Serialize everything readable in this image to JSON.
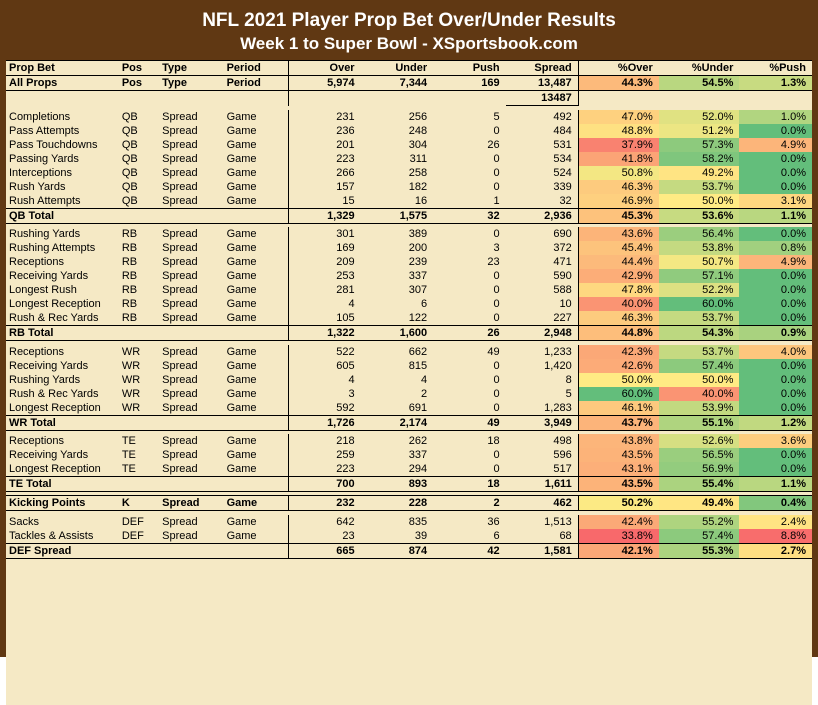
{
  "title": {
    "line1": "NFL 2021 Player Prop Bet Over/Under Results",
    "line2": "Week 1 to Super Bowl - XSportsbook.com"
  },
  "columns": [
    "Prop Bet",
    "Pos",
    "Type",
    "Period",
    "Over",
    "Under",
    "Push",
    "Spread",
    "%Over",
    "%Under",
    "%Push"
  ],
  "percent_color_stops": {
    "pct_cols": {
      "green": "#63be7b",
      "yellow": "#ffeb84",
      "red": "#f8696b",
      "green_at": 60,
      "yellow_at": 50,
      "red_at": 35
    },
    "push_cols": {
      "green": "#63be7b",
      "yellow": "#ffeb84",
      "red": "#f8696b",
      "green_at": 0,
      "yellow_at": 2,
      "red_at": 9
    }
  },
  "meta_row": {
    "propbet": "All Props",
    "pos": "Pos",
    "type": "Type",
    "period": "Period",
    "over": "5,974",
    "under": "7,344",
    "push": "169",
    "spread": "13,487",
    "pover": "44.3%",
    "punder": "54.5%",
    "ppush": "1.3%",
    "pover_v": 44.3,
    "punder_v": 54.5,
    "ppush_v": 1.3
  },
  "meta_extra": {
    "spread": "13487"
  },
  "groups": [
    {
      "rows": [
        {
          "propbet": "Completions",
          "pos": "QB",
          "type": "Spread",
          "period": "Game",
          "over": "231",
          "under": "256",
          "push": "5",
          "spread": "492",
          "pover": "47.0%",
          "punder": "52.0%",
          "ppush": "1.0%",
          "pover_v": 47.0,
          "punder_v": 52.0,
          "ppush_v": 1.0
        },
        {
          "propbet": "Pass Attempts",
          "pos": "QB",
          "type": "Spread",
          "period": "Game",
          "over": "236",
          "under": "248",
          "push": "0",
          "spread": "484",
          "pover": "48.8%",
          "punder": "51.2%",
          "ppush": "0.0%",
          "pover_v": 48.8,
          "punder_v": 51.2,
          "ppush_v": 0.0
        },
        {
          "propbet": "Pass Touchdowns",
          "pos": "QB",
          "type": "Spread",
          "period": "Game",
          "over": "201",
          "under": "304",
          "push": "26",
          "spread": "531",
          "pover": "37.9%",
          "punder": "57.3%",
          "ppush": "4.9%",
          "pover_v": 37.9,
          "punder_v": 57.3,
          "ppush_v": 4.9
        },
        {
          "propbet": "Passing Yards",
          "pos": "QB",
          "type": "Spread",
          "period": "Game",
          "over": "223",
          "under": "311",
          "push": "0",
          "spread": "534",
          "pover": "41.8%",
          "punder": "58.2%",
          "ppush": "0.0%",
          "pover_v": 41.8,
          "punder_v": 58.2,
          "ppush_v": 0.0
        },
        {
          "propbet": "Interceptions",
          "pos": "QB",
          "type": "Spread",
          "period": "Game",
          "over": "266",
          "under": "258",
          "push": "0",
          "spread": "524",
          "pover": "50.8%",
          "punder": "49.2%",
          "ppush": "0.0%",
          "pover_v": 50.8,
          "punder_v": 49.2,
          "ppush_v": 0.0
        },
        {
          "propbet": "Rush Yards",
          "pos": "QB",
          "type": "Spread",
          "period": "Game",
          "over": "157",
          "under": "182",
          "push": "0",
          "spread": "339",
          "pover": "46.3%",
          "punder": "53.7%",
          "ppush": "0.0%",
          "pover_v": 46.3,
          "punder_v": 53.7,
          "ppush_v": 0.0
        },
        {
          "propbet": "Rush Attempts",
          "pos": "QB",
          "type": "Spread",
          "period": "Game",
          "over": "15",
          "under": "16",
          "push": "1",
          "spread": "32",
          "pover": "46.9%",
          "punder": "50.0%",
          "ppush": "3.1%",
          "pover_v": 46.9,
          "punder_v": 50.0,
          "ppush_v": 3.1
        }
      ],
      "total": {
        "propbet": "QB Total",
        "pos": "",
        "type": "",
        "period": "",
        "over": "1,329",
        "under": "1,575",
        "push": "32",
        "spread": "2,936",
        "pover": "45.3%",
        "punder": "53.6%",
        "ppush": "1.1%",
        "pover_v": 45.3,
        "punder_v": 53.6,
        "ppush_v": 1.1
      }
    },
    {
      "rows": [
        {
          "propbet": "Rushing Yards",
          "pos": "RB",
          "type": "Spread",
          "period": "Game",
          "over": "301",
          "under": "389",
          "push": "0",
          "spread": "690",
          "pover": "43.6%",
          "punder": "56.4%",
          "ppush": "0.0%",
          "pover_v": 43.6,
          "punder_v": 56.4,
          "ppush_v": 0.0
        },
        {
          "propbet": "Rushing Attempts",
          "pos": "RB",
          "type": "Spread",
          "period": "Game",
          "over": "169",
          "under": "200",
          "push": "3",
          "spread": "372",
          "pover": "45.4%",
          "punder": "53.8%",
          "ppush": "0.8%",
          "pover_v": 45.4,
          "punder_v": 53.8,
          "ppush_v": 0.8
        },
        {
          "propbet": "Receptions",
          "pos": "RB",
          "type": "Spread",
          "period": "Game",
          "over": "209",
          "under": "239",
          "push": "23",
          "spread": "471",
          "pover": "44.4%",
          "punder": "50.7%",
          "ppush": "4.9%",
          "pover_v": 44.4,
          "punder_v": 50.7,
          "ppush_v": 4.9
        },
        {
          "propbet": "Receiving Yards",
          "pos": "RB",
          "type": "Spread",
          "period": "Game",
          "over": "253",
          "under": "337",
          "push": "0",
          "spread": "590",
          "pover": "42.9%",
          "punder": "57.1%",
          "ppush": "0.0%",
          "pover_v": 42.9,
          "punder_v": 57.1,
          "ppush_v": 0.0
        },
        {
          "propbet": "Longest Rush",
          "pos": "RB",
          "type": "Spread",
          "period": "Game",
          "over": "281",
          "under": "307",
          "push": "0",
          "spread": "588",
          "pover": "47.8%",
          "punder": "52.2%",
          "ppush": "0.0%",
          "pover_v": 47.8,
          "punder_v": 52.2,
          "ppush_v": 0.0
        },
        {
          "propbet": "Longest Reception",
          "pos": "RB",
          "type": "Spread",
          "period": "Game",
          "over": "4",
          "under": "6",
          "push": "0",
          "spread": "10",
          "pover": "40.0%",
          "punder": "60.0%",
          "ppush": "0.0%",
          "pover_v": 40.0,
          "punder_v": 60.0,
          "ppush_v": 0.0
        },
        {
          "propbet": "Rush & Rec Yards",
          "pos": "RB",
          "type": "Spread",
          "period": "Game",
          "over": "105",
          "under": "122",
          "push": "0",
          "spread": "227",
          "pover": "46.3%",
          "punder": "53.7%",
          "ppush": "0.0%",
          "pover_v": 46.3,
          "punder_v": 53.7,
          "ppush_v": 0.0
        }
      ],
      "total": {
        "propbet": "RB Total",
        "pos": "",
        "type": "",
        "period": "",
        "over": "1,322",
        "under": "1,600",
        "push": "26",
        "spread": "2,948",
        "pover": "44.8%",
        "punder": "54.3%",
        "ppush": "0.9%",
        "pover_v": 44.8,
        "punder_v": 54.3,
        "ppush_v": 0.9
      }
    },
    {
      "rows": [
        {
          "propbet": "Receptions",
          "pos": "WR",
          "type": "Spread",
          "period": "Game",
          "over": "522",
          "under": "662",
          "push": "49",
          "spread": "1,233",
          "pover": "42.3%",
          "punder": "53.7%",
          "ppush": "4.0%",
          "pover_v": 42.3,
          "punder_v": 53.7,
          "ppush_v": 4.0
        },
        {
          "propbet": "Receiving Yards",
          "pos": "WR",
          "type": "Spread",
          "period": "Game",
          "over": "605",
          "under": "815",
          "push": "0",
          "spread": "1,420",
          "pover": "42.6%",
          "punder": "57.4%",
          "ppush": "0.0%",
          "pover_v": 42.6,
          "punder_v": 57.4,
          "ppush_v": 0.0
        },
        {
          "propbet": "Rushing Yards",
          "pos": "WR",
          "type": "Spread",
          "period": "Game",
          "over": "4",
          "under": "4",
          "push": "0",
          "spread": "8",
          "pover": "50.0%",
          "punder": "50.0%",
          "ppush": "0.0%",
          "pover_v": 50.0,
          "punder_v": 50.0,
          "ppush_v": 0.0
        },
        {
          "propbet": "Rush & Rec Yards",
          "pos": "WR",
          "type": "Spread",
          "period": "Game",
          "over": "3",
          "under": "2",
          "push": "0",
          "spread": "5",
          "pover": "60.0%",
          "punder": "40.0%",
          "ppush": "0.0%",
          "pover_v": 60.0,
          "punder_v": 40.0,
          "ppush_v": 0.0
        },
        {
          "propbet": "Longest Reception",
          "pos": "WR",
          "type": "Spread",
          "period": "Game",
          "over": "592",
          "under": "691",
          "push": "0",
          "spread": "1,283",
          "pover": "46.1%",
          "punder": "53.9%",
          "ppush": "0.0%",
          "pover_v": 46.1,
          "punder_v": 53.9,
          "ppush_v": 0.0
        }
      ],
      "total": {
        "propbet": "WR Total",
        "pos": "",
        "type": "",
        "period": "",
        "over": "1,726",
        "under": "2,174",
        "push": "49",
        "spread": "3,949",
        "pover": "43.7%",
        "punder": "55.1%",
        "ppush": "1.2%",
        "pover_v": 43.7,
        "punder_v": 55.1,
        "ppush_v": 1.2
      }
    },
    {
      "rows": [
        {
          "propbet": "Receptions",
          "pos": "TE",
          "type": "Spread",
          "period": "Game",
          "over": "218",
          "under": "262",
          "push": "18",
          "spread": "498",
          "pover": "43.8%",
          "punder": "52.6%",
          "ppush": "3.6%",
          "pover_v": 43.8,
          "punder_v": 52.6,
          "ppush_v": 3.6
        },
        {
          "propbet": "Receiving Yards",
          "pos": "TE",
          "type": "Spread",
          "period": "Game",
          "over": "259",
          "under": "337",
          "push": "0",
          "spread": "596",
          "pover": "43.5%",
          "punder": "56.5%",
          "ppush": "0.0%",
          "pover_v": 43.5,
          "punder_v": 56.5,
          "ppush_v": 0.0
        },
        {
          "propbet": "Longest Reception",
          "pos": "TE",
          "type": "Spread",
          "period": "Game",
          "over": "223",
          "under": "294",
          "push": "0",
          "spread": "517",
          "pover": "43.1%",
          "punder": "56.9%",
          "ppush": "0.0%",
          "pover_v": 43.1,
          "punder_v": 56.9,
          "ppush_v": 0.0
        }
      ],
      "total": {
        "propbet": "TE Total",
        "pos": "",
        "type": "",
        "period": "",
        "over": "700",
        "under": "893",
        "push": "18",
        "spread": "1,611",
        "pover": "43.5%",
        "punder": "55.4%",
        "ppush": "1.1%",
        "pover_v": 43.5,
        "punder_v": 55.4,
        "ppush_v": 1.1
      }
    },
    {
      "rows": [],
      "total": {
        "propbet": "Kicking Points",
        "pos": "K",
        "type": "Spread",
        "period": "Game",
        "over": "232",
        "under": "228",
        "push": "2",
        "spread": "462",
        "pover": "50.2%",
        "punder": "49.4%",
        "ppush": "0.4%",
        "pover_v": 50.2,
        "punder_v": 49.4,
        "ppush_v": 0.4
      }
    },
    {
      "rows": [
        {
          "propbet": "Sacks",
          "pos": "DEF",
          "type": "Spread",
          "period": "Game",
          "over": "642",
          "under": "835",
          "push": "36",
          "spread": "1,513",
          "pover": "42.4%",
          "punder": "55.2%",
          "ppush": "2.4%",
          "pover_v": 42.4,
          "punder_v": 55.2,
          "ppush_v": 2.4
        },
        {
          "propbet": "Tackles & Assists",
          "pos": "DEF",
          "type": "Spread",
          "period": "Game",
          "over": "23",
          "under": "39",
          "push": "6",
          "spread": "68",
          "pover": "33.8%",
          "punder": "57.4%",
          "ppush": "8.8%",
          "pover_v": 33.8,
          "punder_v": 57.4,
          "ppush_v": 8.8
        }
      ],
      "total": {
        "propbet": "DEF Spread",
        "pos": "",
        "type": "",
        "period": "",
        "over": "665",
        "under": "874",
        "push": "42",
        "spread": "1,581",
        "pover": "42.1%",
        "punder": "55.3%",
        "ppush": "2.7%",
        "pover_v": 42.1,
        "punder_v": 55.3,
        "ppush_v": 2.7
      }
    }
  ]
}
